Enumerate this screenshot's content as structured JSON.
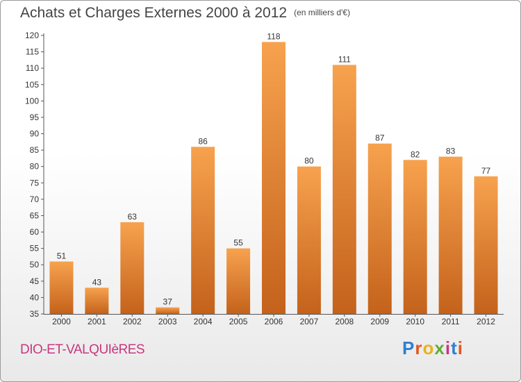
{
  "header": {
    "title": "Achats et Charges Externes 2000 à 2012",
    "unit": "(en milliers d'€)"
  },
  "footer": {
    "commune": "DIO-ET-VALQUIèRES",
    "logo": [
      "P",
      "r",
      "o",
      "x",
      "i",
      "t",
      "i"
    ]
  },
  "colors": {
    "bar": "#ef8f33",
    "bar_dark": "#c4621b",
    "commune": "#c8377f",
    "logo_letters": [
      "#2f7fd1",
      "#e4551f",
      "#e9b21c",
      "#5fae35",
      "#c8377f",
      "#2f7fd1",
      "#e4551f"
    ]
  },
  "chart_data": {
    "type": "bar",
    "title": "Achats et Charges Externes 2000 à 2012",
    "subtitle": "(en milliers d'€)",
    "categories": [
      "2000",
      "2001",
      "2002",
      "2003",
      "2004",
      "2005",
      "2006",
      "2007",
      "2008",
      "2009",
      "2010",
      "2011",
      "2012"
    ],
    "values": [
      51,
      43,
      63,
      37,
      86,
      55,
      118,
      80,
      111,
      87,
      82,
      83,
      77
    ],
    "ylim": [
      35,
      120
    ],
    "yticks": [
      35,
      40,
      45,
      50,
      55,
      60,
      65,
      70,
      75,
      80,
      85,
      90,
      95,
      100,
      105,
      110,
      115,
      120
    ],
    "grid": false,
    "legend": "none"
  }
}
